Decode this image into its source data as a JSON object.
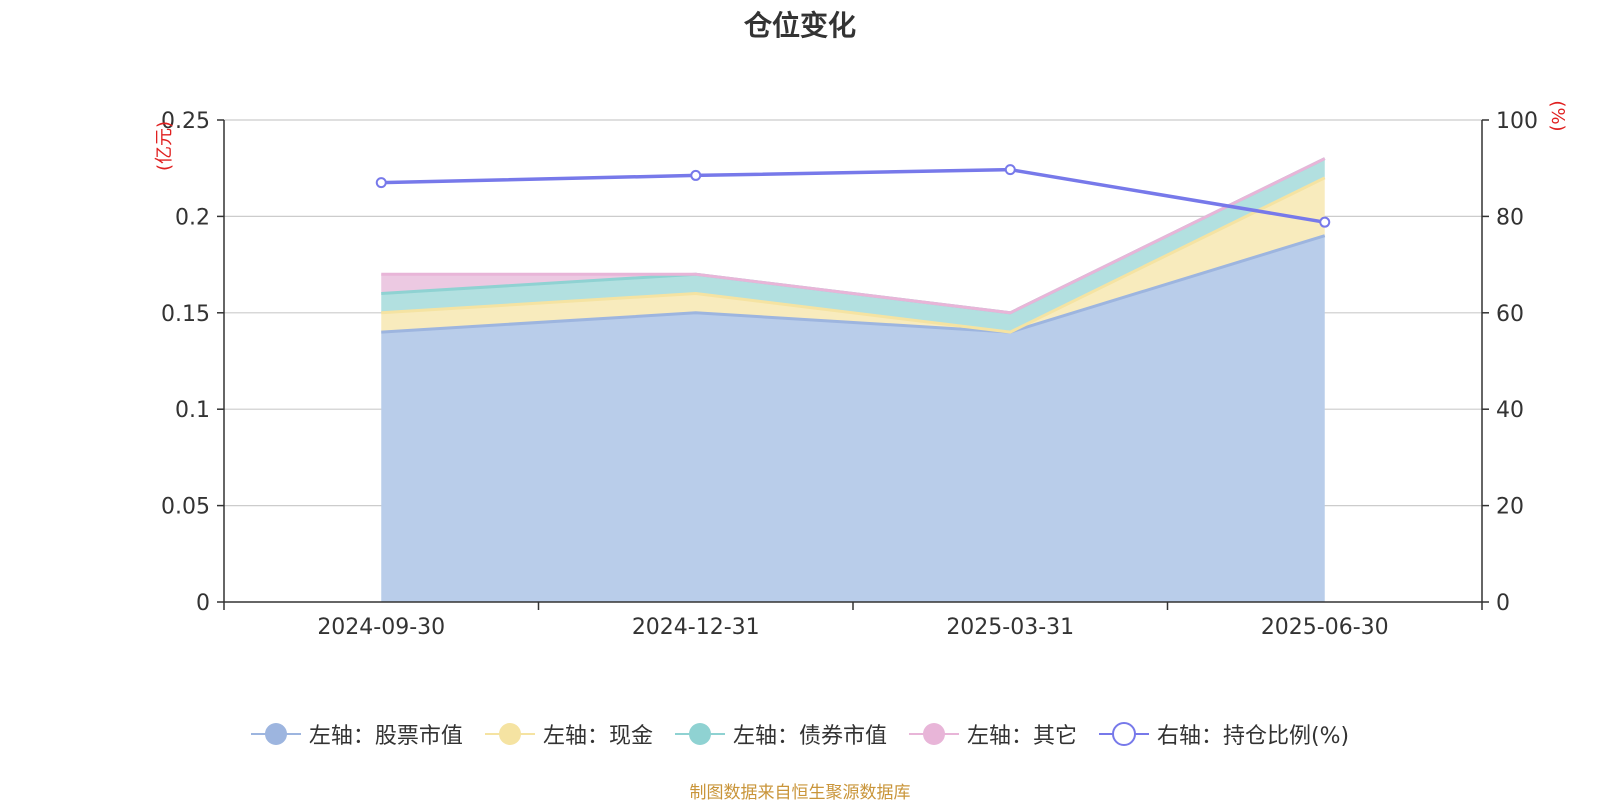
{
  "chart_data": {
    "type": "area",
    "title": "仓位变化",
    "categories": [
      "2024-09-30",
      "2024-12-31",
      "2025-03-31",
      "2025-06-30"
    ],
    "left_axis": {
      "label": "(亿元)",
      "ylim": [
        0,
        0.25
      ],
      "ticks": [
        0,
        0.05,
        0.1,
        0.15,
        0.2,
        0.25
      ],
      "tick_labels": [
        "0",
        "0.05",
        "0.1",
        "0.15",
        "0.2",
        "0.25"
      ]
    },
    "right_axis": {
      "label": "(%)",
      "ylim": [
        0,
        100
      ],
      "ticks": [
        0,
        20,
        40,
        60,
        80,
        100
      ],
      "tick_labels": [
        "0",
        "20",
        "40",
        "60",
        "80",
        "100"
      ]
    },
    "stacked": true,
    "series": [
      {
        "name": "左轴：股票市值",
        "axis": "left",
        "type": "area",
        "values": [
          0.14,
          0.15,
          0.14,
          0.19
        ],
        "color": "#9db5df",
        "fill": "#b9cdea"
      },
      {
        "name": "左轴：现金",
        "axis": "left",
        "type": "area",
        "values": [
          0.01,
          0.01,
          0.0,
          0.03
        ],
        "color": "#f5e3a2",
        "fill": "#f8ebbd"
      },
      {
        "name": "左轴：债券市值",
        "axis": "left",
        "type": "area",
        "values": [
          0.01,
          0.01,
          0.01,
          0.01
        ],
        "color": "#8fd2d2",
        "fill": "#b2e0e0"
      },
      {
        "name": "左轴：其它",
        "axis": "left",
        "type": "area",
        "values": [
          0.01,
          0.0,
          0.0,
          0.0
        ],
        "color": "#e8b5d8",
        "fill": "#ecc9e2"
      },
      {
        "name": "右轴：持仓比例(%)",
        "axis": "right",
        "type": "line",
        "values": [
          87,
          88.5,
          89.7,
          78.8
        ],
        "color": "#7779ea"
      }
    ],
    "grid": true,
    "legend_position": "bottom"
  },
  "source_note": "制图数据来自恒生聚源数据库"
}
